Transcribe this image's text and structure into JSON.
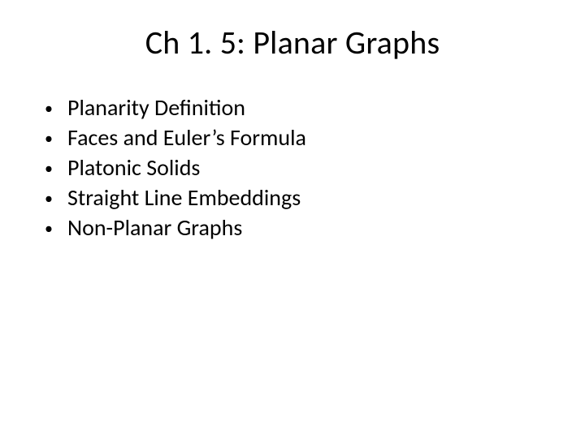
{
  "slide": {
    "title": "Ch 1. 5: Planar Graphs",
    "title_fontsize": 40,
    "title_color": "#000000",
    "body_fontsize": 28,
    "body_color": "#000000",
    "bullet_char": "•",
    "background_color": "#ffffff",
    "bullets": [
      "Planarity Definition",
      "Faces and Euler’s Formula",
      "Platonic Solids",
      "Straight Line Embeddings",
      "Non-Planar Graphs"
    ]
  }
}
